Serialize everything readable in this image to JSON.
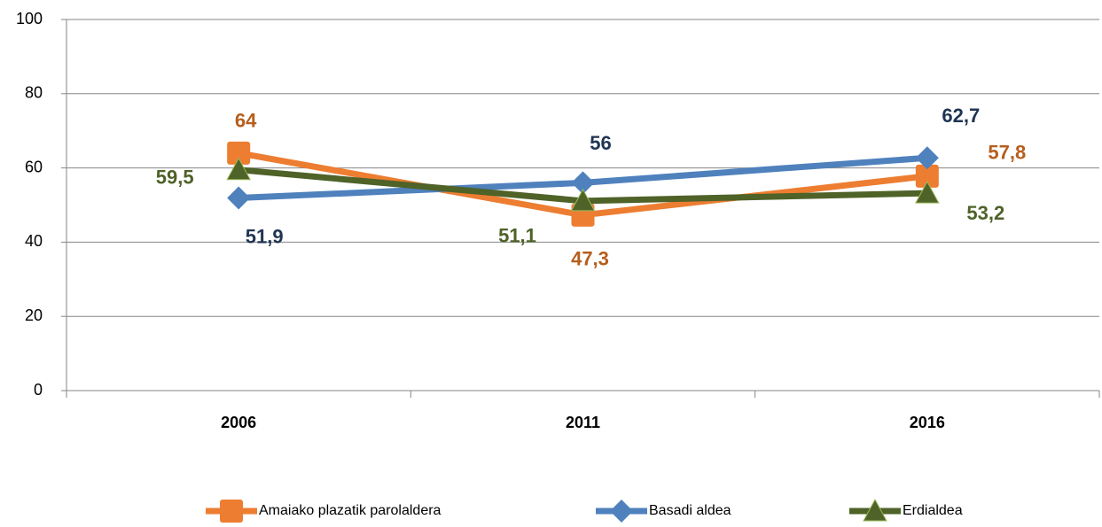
{
  "chart_data": {
    "type": "line",
    "categories": [
      "2006",
      "2011",
      "2016"
    ],
    "series": [
      {
        "name": "Amaiako plazatik parolaldera",
        "color": "#ed7d31",
        "label_color": "#b65e1c",
        "marker": "square",
        "values": [
          64,
          47.3,
          57.8
        ],
        "value_labels": [
          "64",
          "47,3",
          "57,8"
        ]
      },
      {
        "name": "Basadi aldea",
        "color": "#4f81bd",
        "label_color": "#1f3552",
        "marker": "diamond",
        "values": [
          51.9,
          56,
          62.7
        ],
        "value_labels": [
          "51,9",
          "56",
          "62,7"
        ]
      },
      {
        "name": "Erdialdea",
        "color": "#4f6228",
        "label_color": "#4f6228",
        "marker": "triangle",
        "values": [
          59.5,
          51.1,
          53.2
        ],
        "value_labels": [
          "59,5",
          "51,1",
          "53,2"
        ]
      }
    ],
    "ylim": [
      0,
      100
    ],
    "yticks": [
      0,
      20,
      40,
      60,
      80,
      100
    ],
    "grid": true,
    "legend": "bottom"
  }
}
